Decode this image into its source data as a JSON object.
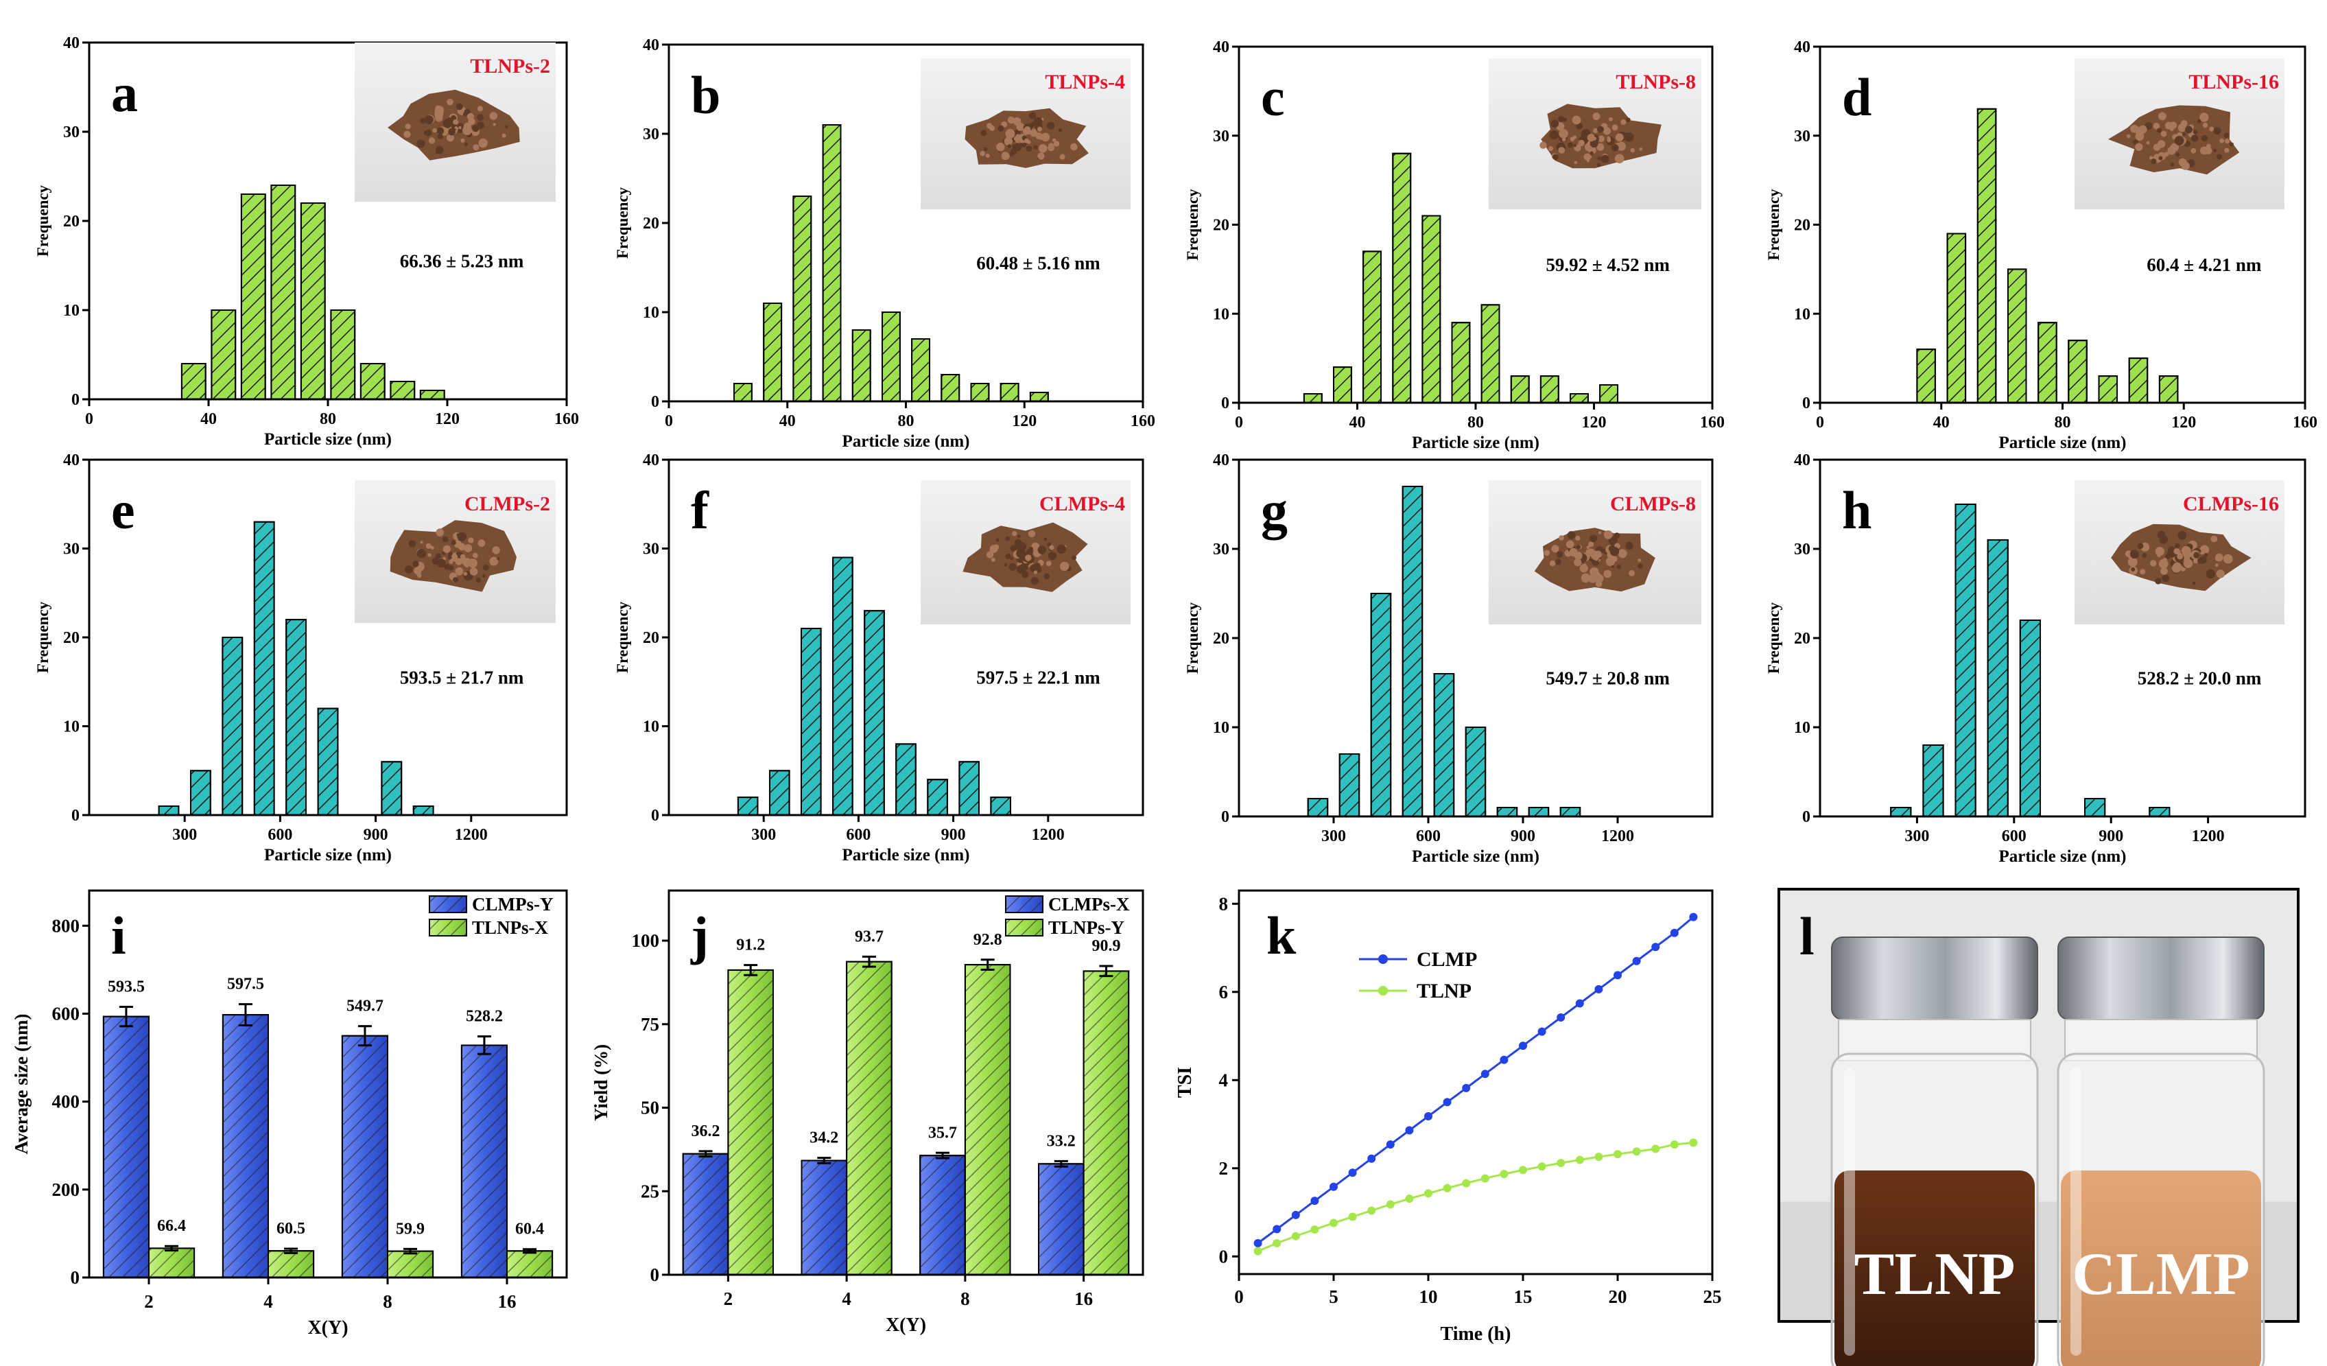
{
  "colors": {
    "lime": "#9fe04e",
    "teal": "#2fbfbf",
    "blue": "#3f62e0",
    "red": "#e0142a",
    "line_blue": "#2443e6",
    "line_green": "#a5e64a"
  },
  "chart_data": [
    {
      "id": "a",
      "type": "bar",
      "panel_label": "a",
      "inset_label": "TLNPs-2",
      "inset_image": "powder-photo",
      "annotation": "66.36 ± 5.23 nm",
      "xlabel": "Particle size (nm)",
      "ylabel": "Frequency",
      "xlim": [
        0,
        160
      ],
      "ylim": [
        0,
        40
      ],
      "xticks": [
        0,
        40,
        80,
        120,
        160
      ],
      "yticks": [
        0,
        10,
        20,
        30,
        40
      ],
      "bin_width": 8,
      "x": [
        35,
        45,
        55,
        65,
        75,
        85,
        95,
        105,
        115
      ],
      "values": [
        4,
        10,
        23,
        24,
        22,
        10,
        4,
        2,
        1
      ],
      "color_key": "lime"
    },
    {
      "id": "b",
      "type": "bar",
      "panel_label": "b",
      "inset_label": "TLNPs-4",
      "inset_image": "powder-photo",
      "annotation": "60.48 ± 5.16 nm",
      "xlabel": "Particle size (nm)",
      "ylabel": "Frequency",
      "xlim": [
        0,
        160
      ],
      "ylim": [
        0,
        40
      ],
      "xticks": [
        0,
        40,
        80,
        120,
        160
      ],
      "yticks": [
        0,
        10,
        20,
        30,
        40
      ],
      "bin_width": 6,
      "x": [
        25,
        35,
        45,
        55,
        65,
        75,
        85,
        95,
        105,
        115,
        125
      ],
      "values": [
        2,
        11,
        23,
        31,
        8,
        10,
        7,
        3,
        2,
        2,
        1
      ],
      "color_key": "lime"
    },
    {
      "id": "c",
      "type": "bar",
      "panel_label": "c",
      "inset_label": "TLNPs-8",
      "inset_image": "powder-photo",
      "annotation": "59.92 ± 4.52 nm",
      "xlabel": "Particle size (nm)",
      "ylabel": "Frequency",
      "xlim": [
        0,
        160
      ],
      "ylim": [
        0,
        40
      ],
      "xticks": [
        0,
        40,
        80,
        120,
        160
      ],
      "yticks": [
        0,
        10,
        20,
        30,
        40
      ],
      "bin_width": 6,
      "x": [
        25,
        35,
        45,
        55,
        65,
        75,
        85,
        95,
        105,
        115,
        125
      ],
      "values": [
        1,
        4,
        17,
        28,
        21,
        9,
        11,
        3,
        3,
        1,
        2
      ],
      "color_key": "lime"
    },
    {
      "id": "d",
      "type": "bar",
      "panel_label": "d",
      "inset_label": "TLNPs-16",
      "inset_image": "powder-photo",
      "annotation": "60.4 ± 4.21 nm",
      "xlabel": "Particle size (nm)",
      "ylabel": "Frequency",
      "xlim": [
        0,
        160
      ],
      "ylim": [
        0,
        40
      ],
      "xticks": [
        0,
        40,
        80,
        120,
        160
      ],
      "yticks": [
        0,
        10,
        20,
        30,
        40
      ],
      "bin_width": 6,
      "x": [
        35,
        45,
        55,
        65,
        75,
        85,
        95,
        105,
        115
      ],
      "values": [
        6,
        19,
        33,
        15,
        9,
        7,
        3,
        5,
        3
      ],
      "color_key": "lime"
    },
    {
      "id": "e",
      "type": "bar",
      "panel_label": "e",
      "inset_label": "CLMPs-2",
      "inset_image": "powder-photo",
      "annotation": "593.5 ± 21.7 nm",
      "xlabel": "Particle size (nm)",
      "ylabel": "Frequency",
      "xlim": [
        0,
        1500
      ],
      "ylim": [
        0,
        40
      ],
      "xticks": [
        300,
        600,
        900,
        1200
      ],
      "yticks": [
        0,
        10,
        20,
        30,
        40
      ],
      "bin_width": 62,
      "x": [
        250,
        350,
        450,
        550,
        650,
        750,
        950,
        1050
      ],
      "values": [
        1,
        5,
        20,
        33,
        22,
        12,
        6,
        1
      ],
      "color_key": "teal"
    },
    {
      "id": "f",
      "type": "bar",
      "panel_label": "f",
      "inset_label": "CLMPs-4",
      "inset_image": "powder-photo",
      "annotation": "597.5 ± 22.1 nm",
      "xlabel": "Particle size (nm)",
      "ylabel": "Frequency",
      "xlim": [
        0,
        1500
      ],
      "ylim": [
        0,
        40
      ],
      "xticks": [
        300,
        600,
        900,
        1200
      ],
      "yticks": [
        0,
        10,
        20,
        30,
        40
      ],
      "bin_width": 62,
      "x": [
        250,
        350,
        450,
        550,
        650,
        750,
        850,
        950,
        1050
      ],
      "values": [
        2,
        5,
        21,
        29,
        23,
        8,
        4,
        6,
        2
      ],
      "color_key": "teal"
    },
    {
      "id": "g",
      "type": "bar",
      "panel_label": "g",
      "inset_label": "CLMPs-8",
      "inset_image": "powder-photo",
      "annotation": "549.7 ± 20.8 nm",
      "xlabel": "Particle size (nm)",
      "ylabel": "Frequency",
      "xlim": [
        0,
        1500
      ],
      "ylim": [
        0,
        40
      ],
      "xticks": [
        300,
        600,
        900,
        1200
      ],
      "yticks": [
        0,
        10,
        20,
        30,
        40
      ],
      "bin_width": 62,
      "x": [
        250,
        350,
        450,
        550,
        650,
        750,
        850,
        950,
        1050
      ],
      "values": [
        2,
        7,
        25,
        37,
        16,
        10,
        1,
        1,
        1
      ],
      "color_key": "teal"
    },
    {
      "id": "h",
      "type": "bar",
      "panel_label": "h",
      "inset_label": "CLMPs-16",
      "inset_image": "powder-photo",
      "annotation": "528.2 ± 20.0 nm",
      "xlabel": "Particle size (nm)",
      "ylabel": "Frequency",
      "xlim": [
        0,
        1500
      ],
      "ylim": [
        0,
        40
      ],
      "xticks": [
        300,
        600,
        900,
        1200
      ],
      "yticks": [
        0,
        10,
        20,
        30,
        40
      ],
      "bin_width": 62,
      "x": [
        250,
        350,
        450,
        550,
        650,
        850,
        1050
      ],
      "values": [
        1,
        8,
        35,
        31,
        22,
        2,
        1
      ],
      "color_key": "teal"
    },
    {
      "id": "i",
      "type": "bar",
      "panel_label": "i",
      "xlabel": "X(Y)",
      "ylabel": "Average size (nm)",
      "categories": [
        "2",
        "4",
        "8",
        "16"
      ],
      "ylim": [
        0,
        880
      ],
      "yticks": [
        0,
        200,
        400,
        600,
        800
      ],
      "series": [
        {
          "name": "CLMPs-Y",
          "values": [
            593.5,
            597.5,
            549.7,
            528.2
          ],
          "errors": [
            22,
            24,
            22,
            20
          ],
          "labels": [
            "593.5",
            "597.5",
            "549.7",
            "528.2"
          ],
          "color_key": "blue"
        },
        {
          "name": "TLNPs-X",
          "values": [
            66.4,
            60.5,
            59.9,
            60.4
          ],
          "errors": [
            5,
            5,
            5,
            4
          ],
          "labels": [
            "66.4",
            "60.5",
            "59.9",
            "60.4"
          ],
          "color_key": "lime"
        }
      ]
    },
    {
      "id": "j",
      "type": "bar",
      "panel_label": "j",
      "xlabel": "X(Y)",
      "ylabel": "Yield (%)",
      "categories": [
        "2",
        "4",
        "8",
        "16"
      ],
      "ylim": [
        0,
        115
      ],
      "yticks": [
        0,
        25,
        50,
        75,
        100
      ],
      "series": [
        {
          "name": "CLMPs-X",
          "values": [
            36.2,
            34.2,
            35.7,
            33.2
          ],
          "errors": [
            0.8,
            0.8,
            0.8,
            0.8
          ],
          "labels": [
            "36.2",
            "34.2",
            "35.7",
            "33.2"
          ],
          "color_key": "blue"
        },
        {
          "name": "TLNPs-Y",
          "values": [
            91.2,
            93.7,
            92.8,
            90.9
          ],
          "errors": [
            1.5,
            1.5,
            1.5,
            1.5
          ],
          "labels": [
            "91.2",
            "93.7",
            "92.8",
            "90.9"
          ],
          "color_key": "lime"
        }
      ]
    },
    {
      "id": "k",
      "type": "line",
      "panel_label": "k",
      "xlabel": "Time (h)",
      "ylabel": "TSI",
      "xlim": [
        0,
        25
      ],
      "ylim": [
        -0.4,
        8.3
      ],
      "xticks": [
        0,
        5,
        10,
        15,
        20,
        25
      ],
      "yticks": [
        0,
        2,
        4,
        6,
        8
      ],
      "series": [
        {
          "name": "CLMP",
          "color_key": "line_blue",
          "x": [
            1,
            2,
            3,
            4,
            5,
            6,
            7,
            8,
            9,
            10,
            11,
            12,
            13,
            14,
            15,
            16,
            17,
            18,
            19,
            20,
            21,
            22,
            23,
            24
          ],
          "values": [
            0.3,
            0.62,
            0.94,
            1.26,
            1.58,
            1.9,
            2.22,
            2.54,
            2.86,
            3.18,
            3.5,
            3.82,
            4.14,
            4.46,
            4.78,
            5.1,
            5.42,
            5.74,
            6.06,
            6.38,
            6.7,
            7.02,
            7.34,
            7.7
          ]
        },
        {
          "name": "TLNP",
          "color_key": "line_green",
          "x": [
            1,
            2,
            3,
            4,
            5,
            6,
            7,
            8,
            9,
            10,
            11,
            12,
            13,
            14,
            15,
            16,
            17,
            18,
            19,
            20,
            21,
            22,
            23,
            24
          ],
          "values": [
            0.12,
            0.3,
            0.46,
            0.61,
            0.76,
            0.9,
            1.04,
            1.18,
            1.31,
            1.43,
            1.55,
            1.66,
            1.77,
            1.87,
            1.96,
            2.04,
            2.12,
            2.19,
            2.26,
            2.32,
            2.38,
            2.44,
            2.54,
            2.58
          ]
        }
      ]
    }
  ],
  "photo": {
    "panel_label": "l",
    "left_label": "TLNP",
    "right_label": "CLMP"
  }
}
